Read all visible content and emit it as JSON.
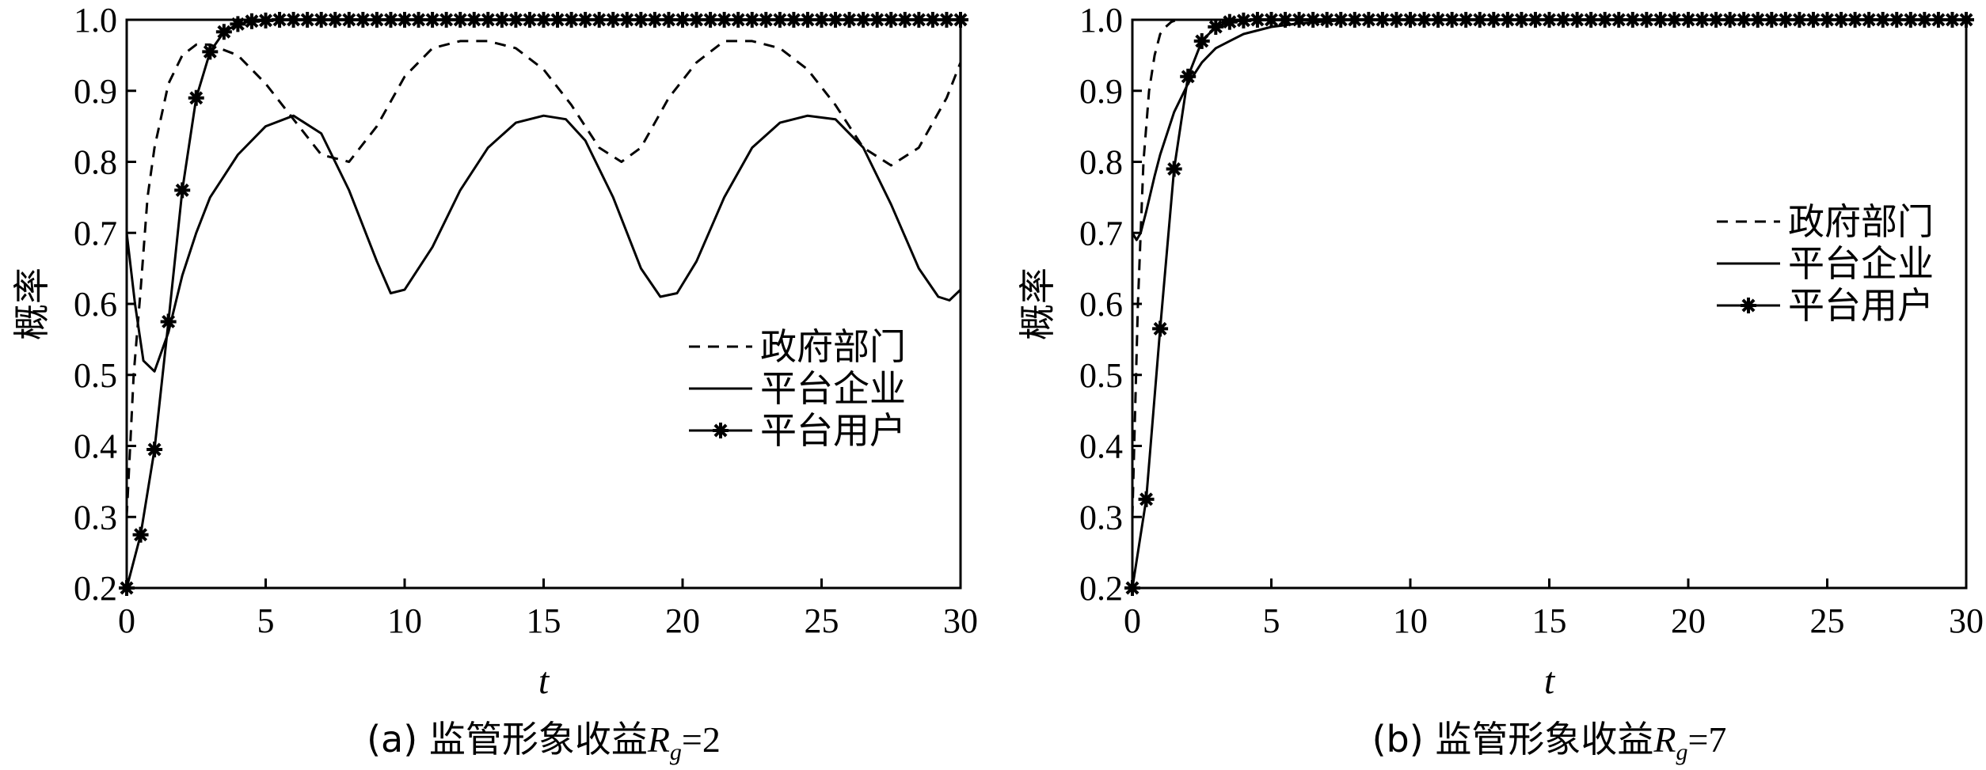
{
  "chart_data": [
    {
      "type": "line",
      "caption": "(a) 监管形象收益",
      "caption_symbol": "R",
      "caption_subscript": "g",
      "caption_value": "=2",
      "xlabel": "t",
      "ylabel": "概率",
      "xlim": [
        0,
        30
      ],
      "ylim": [
        0.2,
        1.0
      ],
      "xticks": [
        0,
        5,
        10,
        15,
        20,
        25,
        30
      ],
      "yticks": [
        "0.2",
        "0.3",
        "0.4",
        "0.5",
        "0.6",
        "0.7",
        "0.8",
        "0.9",
        "1.0"
      ],
      "legend_position": "center-right",
      "series": [
        {
          "name": "政府部门",
          "style": "dashed",
          "x": [
            0,
            0.25,
            0.5,
            0.75,
            1,
            1.5,
            2,
            2.5,
            3,
            4,
            5,
            6,
            7,
            8,
            9,
            10,
            11,
            12,
            13,
            14,
            15,
            16,
            17,
            17.8,
            18.5,
            19.5,
            20.5,
            21.5,
            22.5,
            23.5,
            24.5,
            25.5,
            26.5,
            27.5,
            28.5,
            29.5,
            30
          ],
          "y": [
            0.3,
            0.5,
            0.62,
            0.75,
            0.82,
            0.91,
            0.95,
            0.965,
            0.965,
            0.95,
            0.91,
            0.86,
            0.81,
            0.8,
            0.85,
            0.92,
            0.96,
            0.97,
            0.97,
            0.96,
            0.93,
            0.88,
            0.82,
            0.8,
            0.82,
            0.89,
            0.94,
            0.97,
            0.97,
            0.96,
            0.93,
            0.88,
            0.82,
            0.795,
            0.82,
            0.89,
            0.94
          ]
        },
        {
          "name": "平台企业",
          "style": "solid",
          "x": [
            0,
            0.3,
            0.6,
            1,
            1.5,
            2,
            2.5,
            3,
            3.5,
            4,
            5,
            6,
            7,
            8,
            9,
            9.5,
            10,
            11,
            12,
            13,
            14,
            15,
            15.8,
            16.5,
            17.5,
            18.5,
            19.2,
            19.8,
            20.5,
            21.5,
            22.5,
            23.5,
            24.5,
            25.5,
            26.5,
            27.5,
            28.5,
            29.2,
            29.6,
            30
          ],
          "y": [
            0.7,
            0.6,
            0.52,
            0.505,
            0.56,
            0.64,
            0.7,
            0.75,
            0.78,
            0.81,
            0.85,
            0.865,
            0.84,
            0.76,
            0.66,
            0.615,
            0.62,
            0.68,
            0.76,
            0.82,
            0.855,
            0.865,
            0.86,
            0.83,
            0.75,
            0.65,
            0.61,
            0.615,
            0.66,
            0.75,
            0.82,
            0.855,
            0.865,
            0.86,
            0.82,
            0.74,
            0.65,
            0.61,
            0.605,
            0.62
          ]
        },
        {
          "name": "平台用户",
          "style": "solid-star",
          "x": [
            0,
            0.5,
            1,
            1.5,
            2,
            2.5,
            3,
            3.5,
            4,
            4.5,
            5,
            5.5,
            6,
            6.5,
            7,
            7.5,
            8,
            8.5,
            9,
            9.5,
            10,
            10.5,
            11,
            11.5,
            12,
            12.5,
            13,
            13.5,
            14,
            14.5,
            15,
            15.5,
            16,
            16.5,
            17,
            17.5,
            18,
            18.5,
            19,
            19.5,
            20,
            20.5,
            21,
            21.5,
            22,
            22.5,
            23,
            23.5,
            24,
            24.5,
            25,
            25.5,
            26,
            26.5,
            27,
            27.5,
            28,
            28.5,
            29,
            29.5,
            30
          ],
          "y": [
            0.2,
            0.275,
            0.395,
            0.575,
            0.76,
            0.89,
            0.955,
            0.983,
            0.994,
            0.998,
            0.999,
            1.0,
            1.0,
            1.0,
            1.0,
            1.0,
            1.0,
            1.0,
            1.0,
            1.0,
            1.0,
            1.0,
            1.0,
            1.0,
            1.0,
            1.0,
            1.0,
            1.0,
            1.0,
            1.0,
            1.0,
            1.0,
            1.0,
            1.0,
            1.0,
            1.0,
            1.0,
            1.0,
            1.0,
            1.0,
            1.0,
            1.0,
            1.0,
            1.0,
            1.0,
            1.0,
            1.0,
            1.0,
            1.0,
            1.0,
            1.0,
            1.0,
            1.0,
            1.0,
            1.0,
            1.0,
            1.0,
            1.0,
            1.0,
            1.0,
            1.0
          ]
        }
      ]
    },
    {
      "type": "line",
      "caption": "(b) 监管形象收益",
      "caption_symbol": "R",
      "caption_subscript": "g",
      "caption_value": "=7",
      "xlabel": "t",
      "ylabel": "概率",
      "xlim": [
        0,
        30
      ],
      "ylim": [
        0.2,
        1.0
      ],
      "xticks": [
        0,
        5,
        10,
        15,
        20,
        25,
        30
      ],
      "yticks": [
        "0.2",
        "0.3",
        "0.4",
        "0.5",
        "0.6",
        "0.7",
        "0.8",
        "0.9",
        "1.0"
      ],
      "legend_position": "center-right",
      "series": [
        {
          "name": "政府部门",
          "style": "dashed",
          "x": [
            0,
            0.2,
            0.4,
            0.6,
            0.8,
            1,
            1.2,
            1.4,
            1.6,
            1.8,
            2,
            2.5,
            3,
            5,
            10,
            15,
            20,
            25,
            30
          ],
          "y": [
            0.3,
            0.6,
            0.8,
            0.9,
            0.95,
            0.98,
            0.99,
            0.997,
            1.0,
            1.0,
            1.0,
            1.0,
            1.0,
            1.0,
            1.0,
            1.0,
            1.0,
            1.0,
            1.0
          ]
        },
        {
          "name": "平台企业",
          "style": "solid",
          "x": [
            0,
            0.15,
            0.3,
            0.5,
            0.8,
            1,
            1.5,
            2,
            2.5,
            3,
            3.5,
            4,
            5,
            6,
            7,
            8,
            10,
            15,
            20,
            25,
            30
          ],
          "y": [
            0.7,
            0.69,
            0.7,
            0.73,
            0.78,
            0.81,
            0.87,
            0.91,
            0.94,
            0.96,
            0.97,
            0.98,
            0.99,
            0.995,
            0.998,
            1.0,
            1.0,
            1.0,
            1.0,
            1.0,
            1.0
          ]
        },
        {
          "name": "平台用户",
          "style": "solid-star",
          "x": [
            0,
            0.5,
            1,
            1.5,
            2,
            2.5,
            3,
            3.5,
            4,
            4.5,
            5,
            5.5,
            6,
            6.5,
            7,
            7.5,
            8,
            8.5,
            9,
            9.5,
            10,
            10.5,
            11,
            11.5,
            12,
            12.5,
            13,
            13.5,
            14,
            14.5,
            15,
            15.5,
            16,
            16.5,
            17,
            17.5,
            18,
            18.5,
            19,
            19.5,
            20,
            20.5,
            21,
            21.5,
            22,
            22.5,
            23,
            23.5,
            24,
            24.5,
            25,
            25.5,
            26,
            26.5,
            27,
            27.5,
            28,
            28.5,
            29,
            29.5,
            30
          ],
          "y": [
            0.2,
            0.325,
            0.565,
            0.79,
            0.92,
            0.97,
            0.99,
            0.997,
            0.999,
            1.0,
            1.0,
            1.0,
            1.0,
            1.0,
            1.0,
            1.0,
            1.0,
            1.0,
            1.0,
            1.0,
            1.0,
            1.0,
            1.0,
            1.0,
            1.0,
            1.0,
            1.0,
            1.0,
            1.0,
            1.0,
            1.0,
            1.0,
            1.0,
            1.0,
            1.0,
            1.0,
            1.0,
            1.0,
            1.0,
            1.0,
            1.0,
            1.0,
            1.0,
            1.0,
            1.0,
            1.0,
            1.0,
            1.0,
            1.0,
            1.0,
            1.0,
            1.0,
            1.0,
            1.0,
            1.0,
            1.0,
            1.0,
            1.0,
            1.0,
            1.0,
            1.0
          ]
        }
      ]
    }
  ]
}
